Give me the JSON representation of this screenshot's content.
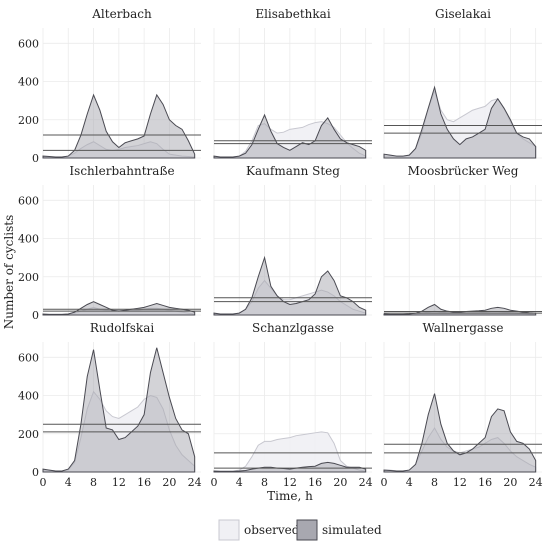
{
  "chart_data": {
    "type": "area",
    "xlabel": "Time, h",
    "ylabel": "Number of cyclists",
    "x_ticks": [
      0,
      4,
      8,
      12,
      16,
      20,
      24
    ],
    "y_ticks": [
      0,
      200,
      400,
      600
    ],
    "xlim": [
      0,
      25
    ],
    "ylim": [
      0,
      680
    ],
    "grid": true,
    "legend_position": "bottom",
    "series_names": [
      "observed",
      "simulated"
    ],
    "colors": {
      "observed_fill": "#f0f0f4",
      "observed_line": "#c8c8d0",
      "simulated_fill": "#a8a8b0",
      "simulated_line": "#4a4a52",
      "hline": "#555555",
      "grid": "#ebebeb"
    },
    "hours": [
      0,
      1,
      2,
      3,
      4,
      5,
      6,
      7,
      8,
      9,
      10,
      11,
      12,
      13,
      14,
      15,
      16,
      17,
      18,
      19,
      20,
      21,
      22,
      23,
      24
    ],
    "panels": [
      {
        "title": "Alterbach",
        "observed": [
          5,
          5,
          5,
          5,
          10,
          25,
          50,
          70,
          85,
          65,
          45,
          40,
          45,
          55,
          60,
          65,
          75,
          85,
          75,
          45,
          20,
          15,
          10,
          8,
          5
        ],
        "simulated": [
          10,
          8,
          5,
          5,
          10,
          40,
          120,
          230,
          330,
          250,
          140,
          85,
          55,
          80,
          90,
          100,
          115,
          230,
          330,
          280,
          200,
          170,
          150,
          90,
          20
        ],
        "obs_mean": 40,
        "sim_mean": 120
      },
      {
        "title": "Elisabethkai",
        "observed": [
          5,
          5,
          5,
          5,
          10,
          35,
          90,
          170,
          180,
          150,
          130,
          135,
          150,
          155,
          160,
          175,
          185,
          190,
          180,
          160,
          120,
          80,
          50,
          25,
          10
        ],
        "simulated": [
          10,
          5,
          5,
          5,
          10,
          25,
          70,
          150,
          225,
          140,
          75,
          55,
          40,
          60,
          80,
          70,
          90,
          170,
          210,
          150,
          100,
          80,
          70,
          60,
          40
        ],
        "obs_mean": 90,
        "sim_mean": 75
      },
      {
        "title": "Giselakai",
        "observed": [
          10,
          10,
          10,
          10,
          15,
          50,
          130,
          260,
          350,
          250,
          200,
          190,
          210,
          230,
          250,
          260,
          270,
          300,
          310,
          260,
          190,
          130,
          100,
          80,
          60
        ],
        "simulated": [
          20,
          15,
          10,
          10,
          15,
          50,
          150,
          260,
          370,
          230,
          150,
          100,
          70,
          100,
          110,
          130,
          150,
          260,
          310,
          260,
          200,
          130,
          110,
          100,
          60
        ],
        "obs_mean": 170,
        "sim_mean": 130
      },
      {
        "title": "Ischlerbahntraße",
        "observed": [
          3,
          3,
          3,
          3,
          5,
          10,
          20,
          30,
          40,
          30,
          25,
          25,
          25,
          25,
          25,
          25,
          30,
          35,
          35,
          30,
          25,
          20,
          15,
          10,
          5
        ],
        "simulated": [
          5,
          3,
          3,
          3,
          5,
          15,
          35,
          55,
          70,
          55,
          40,
          25,
          20,
          25,
          30,
          35,
          40,
          50,
          60,
          50,
          40,
          35,
          30,
          25,
          15
        ],
        "obs_mean": 20,
        "sim_mean": 30
      },
      {
        "title": "Kaufmann Steg",
        "observed": [
          5,
          5,
          5,
          5,
          10,
          30,
          70,
          140,
          180,
          140,
          100,
          80,
          80,
          90,
          100,
          110,
          120,
          130,
          120,
          100,
          70,
          50,
          30,
          20,
          10
        ],
        "simulated": [
          10,
          5,
          5,
          5,
          10,
          30,
          90,
          200,
          300,
          150,
          100,
          70,
          55,
          60,
          70,
          80,
          110,
          200,
          230,
          180,
          100,
          90,
          70,
          40,
          25
        ],
        "obs_mean": 70,
        "sim_mean": 90
      },
      {
        "title": "Moosbrücker Weg",
        "observed": [
          3,
          3,
          3,
          3,
          3,
          5,
          10,
          15,
          20,
          15,
          12,
          12,
          12,
          12,
          12,
          12,
          15,
          18,
          18,
          15,
          12,
          10,
          8,
          5,
          3
        ],
        "simulated": [
          5,
          3,
          3,
          3,
          5,
          10,
          20,
          40,
          55,
          30,
          20,
          15,
          15,
          18,
          20,
          22,
          25,
          35,
          40,
          35,
          25,
          20,
          15,
          12,
          10
        ],
        "obs_mean": 10,
        "sim_mean": 18
      },
      {
        "title": "Rudolfskai",
        "observed": [
          10,
          10,
          5,
          5,
          10,
          50,
          180,
          330,
          420,
          380,
          320,
          290,
          280,
          300,
          320,
          340,
          380,
          400,
          390,
          330,
          220,
          140,
          90,
          60,
          30
        ],
        "simulated": [
          15,
          10,
          5,
          5,
          15,
          60,
          250,
          500,
          640,
          430,
          230,
          220,
          170,
          180,
          210,
          240,
          300,
          520,
          650,
          520,
          390,
          280,
          220,
          200,
          80
        ],
        "obs_mean": 210,
        "sim_mean": 250
      },
      {
        "title": "Schanzlgasse",
        "observed": [
          5,
          5,
          5,
          5,
          10,
          30,
          80,
          140,
          160,
          160,
          170,
          175,
          180,
          190,
          195,
          200,
          205,
          210,
          205,
          150,
          60,
          30,
          20,
          10,
          5
        ],
        "simulated": [
          5,
          3,
          3,
          3,
          5,
          8,
          15,
          20,
          25,
          25,
          20,
          18,
          15,
          20,
          25,
          28,
          30,
          45,
          50,
          45,
          35,
          25,
          25,
          25,
          15
        ],
        "obs_mean": 100,
        "sim_mean": 20
      },
      {
        "title": "Wallnergasse",
        "observed": [
          10,
          10,
          5,
          5,
          10,
          40,
          110,
          180,
          230,
          170,
          130,
          110,
          100,
          110,
          120,
          130,
          150,
          170,
          180,
          150,
          110,
          80,
          60,
          40,
          25
        ],
        "simulated": [
          10,
          8,
          5,
          5,
          10,
          40,
          150,
          300,
          410,
          250,
          150,
          110,
          90,
          100,
          120,
          150,
          180,
          290,
          330,
          320,
          210,
          160,
          150,
          120,
          60
        ],
        "obs_mean": 100,
        "sim_mean": 145
      }
    ]
  }
}
